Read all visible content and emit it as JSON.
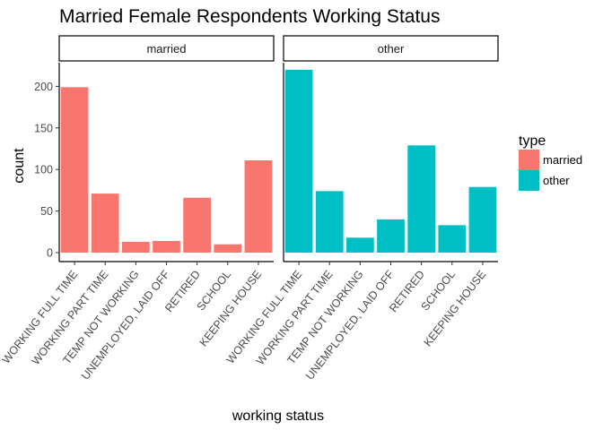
{
  "chart_data": {
    "type": "bar",
    "title": "Married Female Respondents Working Status",
    "xlabel": "working status",
    "ylabel": "count",
    "ylim": [
      0,
      232
    ],
    "yticks": [
      0,
      50,
      100,
      150,
      200
    ],
    "grid": false,
    "categories": [
      "WORKING FULL TIME",
      "WORKING PART TIME",
      "TEMP NOT WORKING",
      "UNEMPLOYED, LAID OFF",
      "RETIRED",
      "SCHOOL",
      "KEEPING HOUSE"
    ],
    "panels": [
      {
        "label": "married",
        "series": "married",
        "values": [
          199,
          71,
          13,
          14,
          66,
          10,
          111
        ]
      },
      {
        "label": "other",
        "series": "other",
        "values": [
          220,
          74,
          18,
          40,
          129,
          33,
          79
        ]
      }
    ],
    "legend": {
      "title": "type",
      "placement": "right",
      "entries": [
        {
          "name": "married",
          "color": "#F8766D"
        },
        {
          "name": "other",
          "color": "#00BFC4"
        }
      ]
    }
  }
}
